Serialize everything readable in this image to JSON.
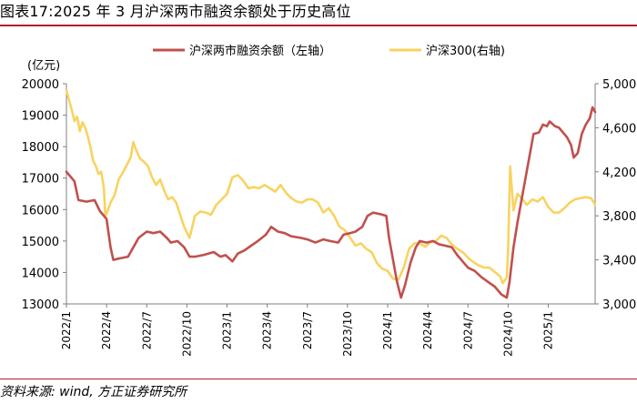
{
  "figure_title": "图表17:2025 年 3 月沪深两市融资余额处于历史高位",
  "source_note": "资料来源: wind, 方正证券研究所",
  "colors": {
    "margin_line": "#c0504d",
    "index_line": "#f8d361",
    "accent": "#b01e2f"
  },
  "chart_data": {
    "type": "line",
    "title": "",
    "ylabel_left": "(亿元)",
    "ylabel_right": "",
    "ylim_left": [
      13000,
      20000
    ],
    "yticks_left": [
      "13000",
      "14000",
      "15000",
      "16000",
      "17000",
      "18000",
      "19000",
      "20000"
    ],
    "ylim_right": [
      3000,
      5000
    ],
    "yticks_right": [
      "3,000",
      "3,400",
      "3,800",
      "4,200",
      "4,600",
      "5,000"
    ],
    "x_range": [
      0,
      39.5
    ],
    "x_ticks": [
      {
        "label": "2022/1",
        "x": 0
      },
      {
        "label": "2022/4",
        "x": 3
      },
      {
        "label": "2022/7",
        "x": 6
      },
      {
        "label": "2022/10",
        "x": 9
      },
      {
        "label": "2023/1",
        "x": 12
      },
      {
        "label": "2023/4",
        "x": 15
      },
      {
        "label": "2023/7",
        "x": 18
      },
      {
        "label": "2023/10",
        "x": 21
      },
      {
        "label": "2024/1",
        "x": 24
      },
      {
        "label": "2024/4",
        "x": 27
      },
      {
        "label": "2024/7",
        "x": 30
      },
      {
        "label": "2024/10",
        "x": 33
      },
      {
        "label": "2025/1",
        "x": 36
      }
    ],
    "legend_position": "top",
    "series": [
      {
        "name": "沪深两市融资余额（左轴）",
        "axis": "left",
        "points": [
          [
            0,
            17200
          ],
          [
            0.3,
            17050
          ],
          [
            0.6,
            16900
          ],
          [
            0.9,
            16300
          ],
          [
            1.5,
            16250
          ],
          [
            2.1,
            16300
          ],
          [
            2.5,
            15950
          ],
          [
            3.0,
            15700
          ],
          [
            3.3,
            14800
          ],
          [
            3.5,
            14400
          ],
          [
            4.0,
            14450
          ],
          [
            4.6,
            14500
          ],
          [
            5.0,
            14800
          ],
          [
            5.4,
            15100
          ],
          [
            6.0,
            15300
          ],
          [
            6.5,
            15250
          ],
          [
            7.0,
            15300
          ],
          [
            7.5,
            15100
          ],
          [
            7.8,
            14950
          ],
          [
            8.3,
            15000
          ],
          [
            8.8,
            14800
          ],
          [
            9.2,
            14500
          ],
          [
            9.6,
            14500
          ],
          [
            10.2,
            14550
          ],
          [
            10.6,
            14600
          ],
          [
            11.0,
            14650
          ],
          [
            11.5,
            14500
          ],
          [
            11.9,
            14550
          ],
          [
            12.4,
            14350
          ],
          [
            12.8,
            14600
          ],
          [
            13.3,
            14700
          ],
          [
            13.8,
            14850
          ],
          [
            14.3,
            15000
          ],
          [
            14.9,
            15200
          ],
          [
            15.3,
            15450
          ],
          [
            15.8,
            15300
          ],
          [
            16.3,
            15250
          ],
          [
            16.8,
            15150
          ],
          [
            17.5,
            15100
          ],
          [
            18.0,
            15050
          ],
          [
            18.6,
            14950
          ],
          [
            19.2,
            15050
          ],
          [
            19.7,
            15000
          ],
          [
            20.3,
            14950
          ],
          [
            20.7,
            15200
          ],
          [
            21.2,
            15250
          ],
          [
            21.6,
            15300
          ],
          [
            22.1,
            15450
          ],
          [
            22.5,
            15800
          ],
          [
            22.9,
            15900
          ],
          [
            23.5,
            15850
          ],
          [
            23.9,
            15800
          ],
          [
            24.1,
            15100
          ],
          [
            24.4,
            14400
          ],
          [
            24.7,
            13700
          ],
          [
            25.0,
            13200
          ],
          [
            25.3,
            13600
          ],
          [
            25.7,
            14300
          ],
          [
            26.1,
            14800
          ],
          [
            26.4,
            15000
          ],
          [
            26.9,
            14950
          ],
          [
            27.4,
            15000
          ],
          [
            27.8,
            14900
          ],
          [
            28.3,
            14850
          ],
          [
            28.8,
            14800
          ],
          [
            29.2,
            14550
          ],
          [
            29.6,
            14350
          ],
          [
            30.0,
            14150
          ],
          [
            30.5,
            14050
          ],
          [
            31.0,
            13850
          ],
          [
            31.5,
            13700
          ],
          [
            32.0,
            13550
          ],
          [
            32.5,
            13300
          ],
          [
            32.9,
            13200
          ],
          [
            33.1,
            13700
          ],
          [
            33.4,
            14800
          ],
          [
            33.7,
            15600
          ],
          [
            34.0,
            16300
          ],
          [
            34.3,
            17000
          ],
          [
            34.6,
            17700
          ],
          [
            34.9,
            18400
          ],
          [
            35.3,
            18450
          ],
          [
            35.6,
            18700
          ],
          [
            35.9,
            18650
          ],
          [
            36.1,
            18800
          ],
          [
            36.5,
            18650
          ],
          [
            36.8,
            18600
          ],
          [
            37.1,
            18450
          ],
          [
            37.4,
            18300
          ],
          [
            37.7,
            18050
          ],
          [
            37.9,
            17650
          ],
          [
            38.2,
            17800
          ],
          [
            38.5,
            18400
          ],
          [
            38.8,
            18700
          ],
          [
            39.1,
            18900
          ],
          [
            39.3,
            19250
          ],
          [
            39.5,
            19100
          ]
        ]
      },
      {
        "name": "沪深300(右轴)",
        "axis": "right",
        "points": [
          [
            0,
            4940
          ],
          [
            0.2,
            4850
          ],
          [
            0.4,
            4760
          ],
          [
            0.6,
            4660
          ],
          [
            0.8,
            4700
          ],
          [
            1.0,
            4570
          ],
          [
            1.2,
            4650
          ],
          [
            1.4,
            4600
          ],
          [
            1.6,
            4520
          ],
          [
            1.8,
            4420
          ],
          [
            2.0,
            4300
          ],
          [
            2.2,
            4250
          ],
          [
            2.4,
            4180
          ],
          [
            2.6,
            4200
          ],
          [
            2.8,
            4050
          ],
          [
            2.9,
            3800
          ],
          [
            3.0,
            3820
          ],
          [
            3.3,
            3920
          ],
          [
            3.6,
            3990
          ],
          [
            3.9,
            4130
          ],
          [
            4.2,
            4190
          ],
          [
            4.5,
            4260
          ],
          [
            4.8,
            4330
          ],
          [
            5.0,
            4470
          ],
          [
            5.2,
            4400
          ],
          [
            5.5,
            4320
          ],
          [
            5.8,
            4290
          ],
          [
            6.1,
            4250
          ],
          [
            6.4,
            4150
          ],
          [
            6.7,
            4080
          ],
          [
            7.0,
            4130
          ],
          [
            7.3,
            4030
          ],
          [
            7.6,
            3950
          ],
          [
            7.9,
            3970
          ],
          [
            8.2,
            3920
          ],
          [
            8.5,
            3810
          ],
          [
            8.8,
            3700
          ],
          [
            9.2,
            3600
          ],
          [
            9.6,
            3800
          ],
          [
            10.0,
            3840
          ],
          [
            10.4,
            3830
          ],
          [
            10.8,
            3810
          ],
          [
            11.2,
            3900
          ],
          [
            11.6,
            3950
          ],
          [
            12.0,
            4000
          ],
          [
            12.4,
            4150
          ],
          [
            12.8,
            4170
          ],
          [
            13.2,
            4120
          ],
          [
            13.6,
            4050
          ],
          [
            14.0,
            4060
          ],
          [
            14.4,
            4050
          ],
          [
            14.8,
            4080
          ],
          [
            15.2,
            4050
          ],
          [
            15.6,
            4020
          ],
          [
            16.0,
            4080
          ],
          [
            16.4,
            4010
          ],
          [
            16.8,
            3960
          ],
          [
            17.2,
            3930
          ],
          [
            17.6,
            3920
          ],
          [
            18.0,
            3950
          ],
          [
            18.4,
            3950
          ],
          [
            18.8,
            3920
          ],
          [
            19.2,
            3830
          ],
          [
            19.6,
            3870
          ],
          [
            20.0,
            3800
          ],
          [
            20.4,
            3700
          ],
          [
            20.8,
            3670
          ],
          [
            21.2,
            3600
          ],
          [
            21.6,
            3530
          ],
          [
            22.0,
            3550
          ],
          [
            22.4,
            3500
          ],
          [
            22.8,
            3470
          ],
          [
            23.2,
            3370
          ],
          [
            23.6,
            3320
          ],
          [
            24.0,
            3300
          ],
          [
            24.4,
            3230
          ],
          [
            24.8,
            3220
          ],
          [
            25.2,
            3330
          ],
          [
            25.6,
            3500
          ],
          [
            26.0,
            3550
          ],
          [
            26.4,
            3550
          ],
          [
            26.8,
            3520
          ],
          [
            27.2,
            3560
          ],
          [
            27.6,
            3570
          ],
          [
            28.0,
            3620
          ],
          [
            28.4,
            3600
          ],
          [
            28.8,
            3540
          ],
          [
            29.2,
            3500
          ],
          [
            29.6,
            3470
          ],
          [
            30.0,
            3420
          ],
          [
            30.4,
            3380
          ],
          [
            30.8,
            3350
          ],
          [
            31.2,
            3330
          ],
          [
            31.6,
            3330
          ],
          [
            32.0,
            3290
          ],
          [
            32.4,
            3250
          ],
          [
            32.6,
            3190
          ],
          [
            32.9,
            3240
          ],
          [
            33.0,
            3500
          ],
          [
            33.15,
            4250
          ],
          [
            33.4,
            3850
          ],
          [
            33.7,
            4000
          ],
          [
            34.0,
            3960
          ],
          [
            34.4,
            3900
          ],
          [
            34.8,
            3950
          ],
          [
            35.2,
            3930
          ],
          [
            35.6,
            3970
          ],
          [
            36.0,
            3880
          ],
          [
            36.4,
            3830
          ],
          [
            36.8,
            3830
          ],
          [
            37.2,
            3870
          ],
          [
            37.6,
            3920
          ],
          [
            38.0,
            3950
          ],
          [
            38.4,
            3960
          ],
          [
            38.8,
            3970
          ],
          [
            39.2,
            3960
          ],
          [
            39.5,
            3900
          ]
        ]
      }
    ]
  }
}
